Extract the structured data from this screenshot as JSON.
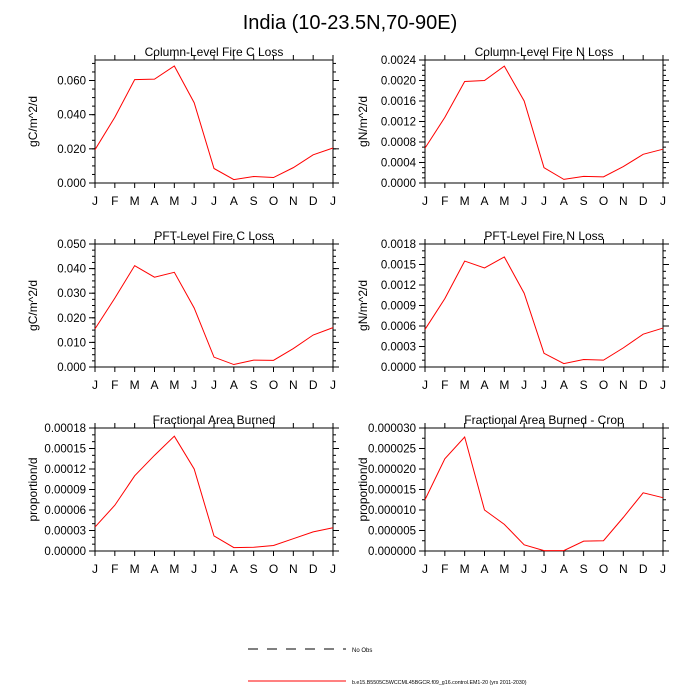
{
  "title": "India (10-23.5N,70-90E)",
  "colors": {
    "series": "#ff0000",
    "axis": "#000000"
  },
  "legend": {
    "obs_label": "No Obs",
    "model_label": "b.e15.B5505C5WCCML45BGCR.f09_g16.control.EM1-20 (yrs 2011-2030)"
  },
  "chart_data": [
    {
      "type": "line",
      "title": "Column-Level Fire C Loss",
      "ylabel": "gC/m^2/d",
      "categories": [
        "J",
        "F",
        "M",
        "A",
        "M",
        "J",
        "J",
        "A",
        "S",
        "O",
        "N",
        "D",
        "J"
      ],
      "values": [
        0.0195,
        0.0385,
        0.0605,
        0.0608,
        0.0685,
        0.047,
        0.0085,
        0.002,
        0.0038,
        0.0032,
        0.009,
        0.0165,
        0.0205
      ],
      "ylim": [
        0,
        0.072
      ],
      "yticks": [
        0,
        0.02,
        0.04,
        0.06
      ],
      "ytick_labels": [
        "0.000",
        "0.020",
        "0.040",
        "0.060"
      ],
      "minor_step": 0.005
    },
    {
      "type": "line",
      "title": "Column-Level Fire N Loss",
      "ylabel": "gN/m^2/d",
      "categories": [
        "J",
        "F",
        "M",
        "A",
        "M",
        "J",
        "J",
        "A",
        "S",
        "O",
        "N",
        "D",
        "J"
      ],
      "values": [
        0.00068,
        0.00128,
        0.00198,
        0.002,
        0.00228,
        0.0016,
        0.0003,
        7e-05,
        0.00013,
        0.00012,
        0.00032,
        0.00056,
        0.00066
      ],
      "ylim": [
        0,
        0.0024
      ],
      "yticks": [
        0,
        0.0004,
        0.0008,
        0.0012,
        0.0016,
        0.002,
        0.0024
      ],
      "ytick_labels": [
        "0.0000",
        "0.0004",
        "0.0008",
        "0.0012",
        "0.0016",
        "0.0020",
        "0.0024"
      ],
      "minor_step": 0.0001
    },
    {
      "type": "line",
      "title": "PFT-Level Fire C Loss",
      "ylabel": "gC/m^2/d",
      "categories": [
        "J",
        "F",
        "M",
        "A",
        "M",
        "J",
        "J",
        "A",
        "S",
        "O",
        "N",
        "D",
        "J"
      ],
      "values": [
        0.0155,
        0.028,
        0.0412,
        0.0365,
        0.0385,
        0.024,
        0.004,
        0.001,
        0.0028,
        0.0027,
        0.0075,
        0.013,
        0.016
      ],
      "ylim": [
        0,
        0.05
      ],
      "yticks": [
        0,
        0.01,
        0.02,
        0.03,
        0.04,
        0.05
      ],
      "ytick_labels": [
        "0.000",
        "0.010",
        "0.020",
        "0.030",
        "0.040",
        "0.050"
      ],
      "minor_step": 0.0025
    },
    {
      "type": "line",
      "title": "PFT-Level Fire N Loss",
      "ylabel": "gN/m^2/d",
      "categories": [
        "J",
        "F",
        "M",
        "A",
        "M",
        "J",
        "J",
        "A",
        "S",
        "O",
        "N",
        "D",
        "J"
      ],
      "values": [
        0.00055,
        0.001,
        0.00155,
        0.00145,
        0.00161,
        0.00108,
        0.0002,
        5e-05,
        0.00011,
        0.0001,
        0.00028,
        0.00048,
        0.00057
      ],
      "ylim": [
        0,
        0.0018
      ],
      "yticks": [
        0,
        0.0003,
        0.0006,
        0.0009,
        0.0012,
        0.0015,
        0.0018
      ],
      "ytick_labels": [
        "0.0000",
        "0.0003",
        "0.0006",
        "0.0009",
        "0.0012",
        "0.0015",
        "0.0018"
      ],
      "minor_step": 0.0001
    },
    {
      "type": "line",
      "title": "Fractional Area Burned",
      "ylabel": "proportion/d",
      "categories": [
        "J",
        "F",
        "M",
        "A",
        "M",
        "J",
        "J",
        "A",
        "S",
        "O",
        "N",
        "D",
        "J"
      ],
      "values": [
        3.5e-05,
        6.7e-05,
        0.00011,
        0.00014,
        0.000168,
        0.00012,
        2.2e-05,
        5e-06,
        5.5e-06,
        8e-06,
        1.8e-05,
        2.8e-05,
        3.4e-05
      ],
      "ylim": [
        0,
        0.00018
      ],
      "yticks": [
        0,
        3e-05,
        6e-05,
        9e-05,
        0.00012,
        0.00015,
        0.00018
      ],
      "ytick_labels": [
        "0.00000",
        "0.00003",
        "0.00006",
        "0.00009",
        "0.00012",
        "0.00015",
        "0.00018"
      ],
      "minor_step": 1e-05
    },
    {
      "type": "line",
      "title": "Fractional Area Burned - Crop",
      "ylabel": "proportion/d",
      "categories": [
        "J",
        "F",
        "M",
        "A",
        "M",
        "J",
        "J",
        "A",
        "S",
        "O",
        "N",
        "D",
        "J"
      ],
      "values": [
        1.25e-05,
        2.25e-05,
        2.78e-05,
        1e-05,
        6.5e-06,
        1.5e-06,
        1e-07,
        1e-07,
        2.4e-06,
        2.5e-06,
        8.2e-06,
        1.42e-05,
        1.3e-05
      ],
      "ylim": [
        0,
        3e-05
      ],
      "yticks": [
        0,
        5e-06,
        1e-05,
        1.5e-05,
        2e-05,
        2.5e-05,
        3e-05
      ],
      "ytick_labels": [
        "0.000000",
        "0.000005",
        "0.000010",
        "0.000015",
        "0.000020",
        "0.000025",
        "0.000030"
      ],
      "minor_step": 2.5e-06
    }
  ]
}
